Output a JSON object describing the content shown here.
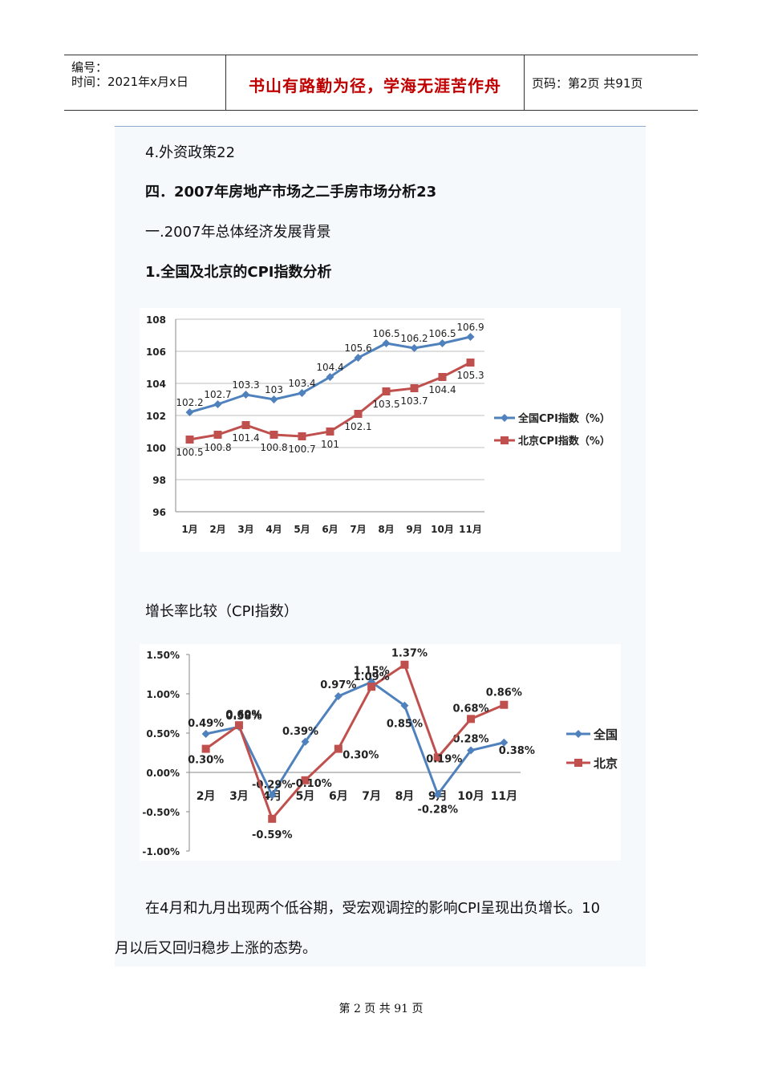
{
  "header": {
    "code_label": "编号：",
    "time_label": "时间：2021年x月x日",
    "motto": "书山有路勤为径，学海无涯苦作舟",
    "page_info": "页码：第2页  共91页"
  },
  "content": {
    "line1": "4.外资政策22",
    "line2": "四．2007年房地产市场之二手房市场分析23",
    "line3": "一.2007年总体经济发展背景",
    "line4": "1.全国及北京的CPI指数分析",
    "chart2_caption": "增长率比较（CPI指数）",
    "paragraph_line1": "在4月和九月出现两个低谷期，受宏观调控的影响CPI呈现出负增长。10",
    "paragraph_line2": "月以后又回归稳步上涨的态势。"
  },
  "chart_data": [
    {
      "type": "line",
      "title": "",
      "xlabel": "",
      "ylabel": "",
      "categories": [
        "1月",
        "2月",
        "3月",
        "4月",
        "5月",
        "6月",
        "7月",
        "8月",
        "9月",
        "10月",
        "11月"
      ],
      "y_ticks": [
        "108",
        "106",
        "104",
        "102",
        "100",
        "98",
        "96"
      ],
      "ylim": [
        96,
        108
      ],
      "grid": true,
      "legend_position": "right",
      "series": [
        {
          "name": "全国CPI指数（%）",
          "color": "#4f81bd",
          "marker": "diamond",
          "values": [
            102.2,
            102.7,
            103.3,
            103,
            103.4,
            104.4,
            105.6,
            106.5,
            106.2,
            106.5,
            106.9
          ],
          "labels": [
            "102.2",
            "102.7",
            "103.3",
            "103",
            "103.4",
            "104.4",
            "105.6",
            "106.5",
            "106.2",
            "106.5",
            "106.9"
          ]
        },
        {
          "name": "北京CPI指数（%）",
          "color": "#c0504d",
          "marker": "square",
          "values": [
            100.5,
            100.8,
            101.4,
            100.8,
            100.7,
            101,
            102.1,
            103.5,
            103.7,
            104.4,
            105.3
          ],
          "labels": [
            "100.5",
            "100.8",
            "101.4",
            "100.8",
            "100.7",
            "101",
            "102.1",
            "103.5",
            "103.7",
            "104.4",
            "105.3"
          ]
        }
      ]
    },
    {
      "type": "line",
      "title": "",
      "xlabel": "",
      "ylabel": "",
      "categories": [
        "2月",
        "3月",
        "4月",
        "5月",
        "6月",
        "7月",
        "8月",
        "9月",
        "10月",
        "11月"
      ],
      "y_ticks": [
        "1.50%",
        "1.00%",
        "0.50%",
        "0.00%",
        "-0.50%",
        "-1.00%"
      ],
      "ylim": [
        -1.0,
        1.5
      ],
      "grid": false,
      "legend_position": "right",
      "series": [
        {
          "name": "全国",
          "color": "#4f81bd",
          "marker": "diamond",
          "values": [
            0.49,
            0.58,
            -0.29,
            0.39,
            0.97,
            1.15,
            0.85,
            -0.28,
            0.28,
            0.38
          ],
          "labels": [
            "0.49%",
            "0.58%",
            "-0.29%",
            "0.39%",
            "0.97%",
            "1.15%",
            "0.85%",
            "-0.28%",
            "0.28%",
            "0.38%"
          ]
        },
        {
          "name": "北京",
          "color": "#c0504d",
          "marker": "square",
          "values": [
            0.3,
            0.6,
            -0.59,
            -0.1,
            0.3,
            1.09,
            1.37,
            0.19,
            0.68,
            0.86
          ],
          "labels": [
            "0.30%",
            "0.60%",
            "-0.59%",
            "-0.10%",
            "0.30%",
            "1.09%",
            "1.37%",
            "0.19%",
            "0.68%",
            "0.86%"
          ]
        }
      ]
    }
  ],
  "footer": {
    "page_text": "第 2 页 共 91 页"
  }
}
